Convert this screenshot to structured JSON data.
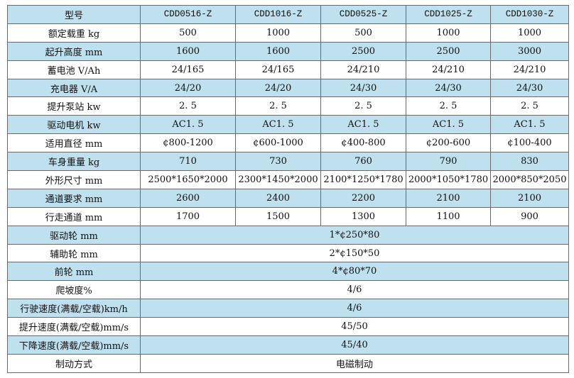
{
  "table": {
    "header": [
      "型号",
      "CDD0516-Z",
      "CDD1016-Z",
      "CDD0525-Z",
      "CDD1025-Z",
      "CDD1030-Z"
    ],
    "rows": [
      [
        "额定载重 kg",
        "500",
        "1000",
        "500",
        "1000",
        "1000"
      ],
      [
        "起升高度 mm",
        "1600",
        "1600",
        "2500",
        "2500",
        "3000"
      ],
      [
        "蓄电池 V/Ah",
        "24/165",
        "24/165",
        "24/210",
        "24/210",
        "24/210"
      ],
      [
        "充电器 V/A",
        "24/20",
        "24/20",
        "24/30",
        "24/30",
        "24/30"
      ],
      [
        "提升泵站 kw",
        "2. 5",
        "2. 5",
        "2. 5",
        "2. 5",
        "2. 5"
      ],
      [
        "驱动电机 kw",
        "AC1. 5",
        "AC1. 5",
        "AC1. 5",
        "AC1. 5",
        "AC1. 5"
      ],
      [
        "适用直径 mm",
        "¢800-1200",
        "¢600-1000",
        "¢400-800",
        "¢200-600",
        "¢100-400"
      ],
      [
        "车身重量 kg",
        "710",
        "730",
        "760",
        "790",
        "830"
      ],
      [
        "外形尺寸 mm",
        "2500*1650*2000",
        "2300*1450*2000",
        "2100*1250*1780",
        "2000*1050*1780",
        "2000*850*2050"
      ],
      [
        "通道要求 mm",
        "2600",
        "2400",
        "2200",
        "2100",
        "2100"
      ],
      [
        "行走通道 mm",
        "1700",
        "1500",
        "1300",
        "1100",
        "900"
      ],
      [
        "驱动轮 mm",
        "1*¢250*80"
      ],
      [
        "辅助轮 mm",
        "2*¢150*50"
      ],
      [
        "前轮 mm",
        "4*¢80*70"
      ],
      [
        "爬坡度%",
        "4/6"
      ],
      [
        "行驶速度(满载/空载)km/h",
        "4/6"
      ],
      [
        "提升速度(满载/空载)mm/s",
        "45/50"
      ],
      [
        "下降速度(满载/空载)mm/s",
        "45/40"
      ],
      [
        "制动方式",
        "电磁制动"
      ]
    ]
  }
}
